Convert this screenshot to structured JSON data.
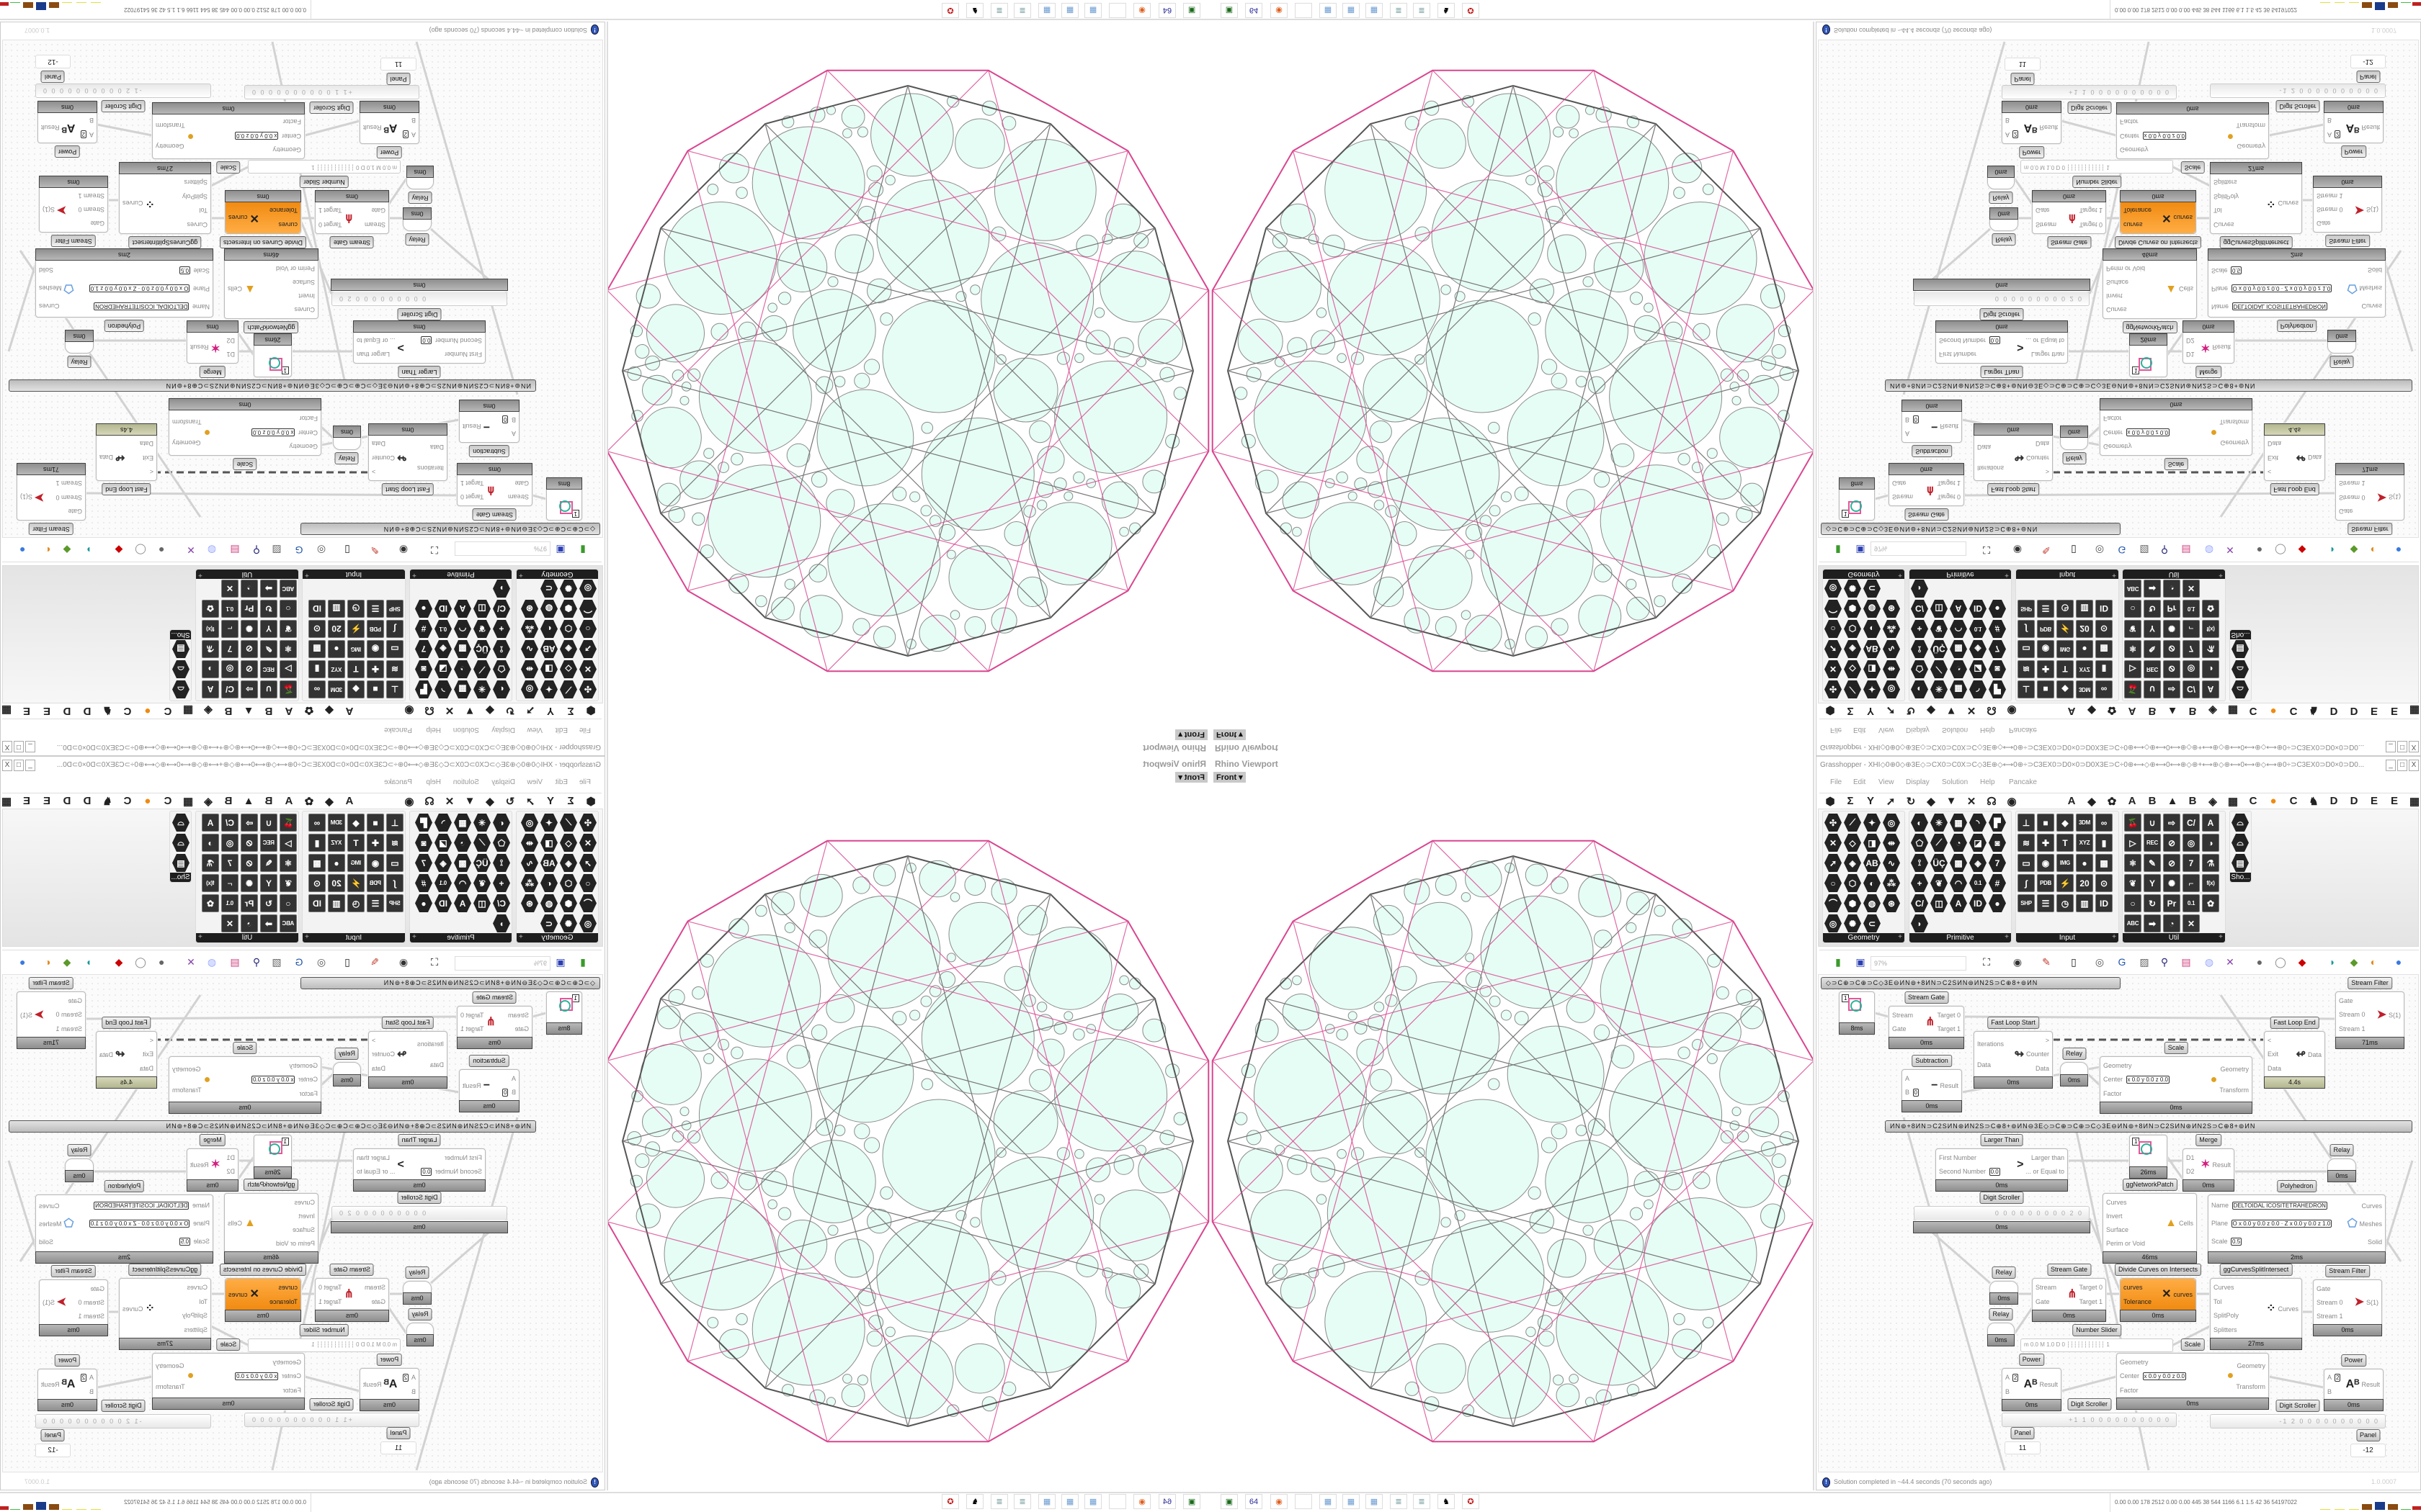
{
  "window": {
    "title": "Grasshopper - XHI◇0⊕0◇⊕3E◇⊃CX0⊃C0X⊃C◇3E⊕◇⟷0⊕÷⊃C3EX0⊃D0×0⊃D0X3E⊃C÷0⊕⟷◇⊕⟷0⟷⊕◇⊕+⟷⊕◇⊕⟷0⟷⊕◇⟷⊕0÷⊃C3EX0⊃D0×0⊃D0...",
    "controls": [
      "_",
      "□",
      "X"
    ]
  },
  "menu": [
    "File",
    "Edit",
    "View",
    "Display",
    "Solution",
    "Help",
    "Pancake"
  ],
  "tabs": {
    "left": [
      "⬢",
      "Σ",
      "Y",
      "➚",
      "↻",
      "◆",
      "▼",
      "✕",
      "☊",
      "◉"
    ],
    "right": [
      "A",
      "◆",
      "✿",
      "A",
      "B",
      "▲",
      "B",
      "◈",
      "▦",
      "C",
      "●",
      "C",
      "♞",
      "D",
      "D",
      "E",
      "E",
      "▦"
    ]
  },
  "palette": [
    {
      "label": "Geometry",
      "glyphs": [
        "✣",
        "⟋",
        "✦",
        "◎",
        "✕",
        "◇",
        "◨",
        "⇹",
        "➚",
        "◈",
        "AB",
        "∿",
        "○",
        "⬡",
        "◐",
        "⁂",
        "⌒",
        "⬢",
        "◍",
        "⊛",
        "◎",
        "✺",
        "⊂"
      ]
    },
    {
      "label": "Primitive",
      "glyphs": [
        "◐",
        "✳",
        "▦",
        "◝",
        "▛",
        "⬠",
        "⟋",
        "◔",
        "◪",
        "◙",
        "⟟",
        "ÜÇ",
        "▩",
        "◈",
        "7",
        "+",
        "❦",
        "◠",
        "0.1",
        "#",
        "C/",
        "◫",
        "A",
        "ID",
        "●",
        "◗"
      ]
    },
    {
      "label": "Input",
      "glyphs": [
        "⊥",
        "■",
        "◆",
        "3DM",
        "∞",
        "≋",
        "✚",
        "T",
        "XYZ",
        "▮",
        "▭",
        "◉",
        "IMG",
        "●",
        "▩",
        "∫",
        "PDB",
        "⚡",
        "20",
        "⊙",
        "SHP",
        "☰",
        "◷",
        "▥",
        "ID"
      ]
    },
    {
      "label": "Util",
      "glyphs": [
        "🍒",
        "∪",
        "⇨",
        "C/",
        "A",
        "▷",
        "REC",
        "⊘",
        "◎",
        "◑",
        "⚛",
        "✎",
        "⊘",
        "7",
        "⚗",
        "❦",
        "Y",
        "✺",
        "⌐",
        "f(x)",
        "○",
        "↻",
        "Pr",
        "0.1",
        "✿",
        "ABC",
        "➡",
        "◔",
        "✕"
      ]
    },
    {
      "label": "Sho...",
      "glyphs": [
        "⌓",
        "⌓",
        "▤"
      ]
    }
  ],
  "toolbar": {
    "zoom": "97%",
    "icons": [
      "new-file",
      "save",
      "zoom-extents",
      "preview",
      "sketch",
      "bake",
      "cluster",
      "gha",
      "widget",
      "search",
      "package",
      "bulb",
      "crossref",
      "sphere-gray",
      "capsule",
      "red-gem",
      "teal",
      "green",
      "orange-sphere",
      "blue-sphere"
    ]
  },
  "canvas": {
    "groups": [
      "◇⊃C⊕⊃C⊕⊃C◇3E⊖ИN⊚+8ИN⊃C2SИN⊛ИN2S⊃C⊕8+⊚ИN",
      "ИN⊚+8ИN⊃C2SИN⊛ИN2S⊃C⊕8+⊚ИN⊖3E◇⊃C⊕⊃C⊕⊃C◇3E⊖ИN⊚+8ИN⊃C2SИN⊛ИN2S⊃C⊕8+⊚ИN"
    ],
    "nodes": [
      {
        "type": "param",
        "value": "1",
        "time": "8ms"
      },
      {
        "type": "comp",
        "label": "Stream Gate",
        "icon": "⋔",
        "inputs": [
          {
            "n": "Stream"
          },
          {
            "n": "Gate"
          }
        ],
        "outputs": [
          "Target 0",
          "Target 1"
        ],
        "time": "0ms"
      },
      {
        "type": "comp",
        "label": "Fast Loop Start",
        "icon": "↬",
        "inputs": [
          {
            "n": "Iterations"
          },
          {
            "n": "Data"
          }
        ],
        "outputs": [
          ">",
          "Counter",
          "Data"
        ],
        "time": "0ms"
      },
      {
        "type": "relay",
        "label": "Relay",
        "time": "0ms"
      },
      {
        "type": "comp",
        "label": "Subtraction",
        "icon": "−",
        "inputs": [
          {
            "n": "A"
          },
          {
            "n": "B",
            "v": "0"
          }
        ],
        "outputs": [
          "Result"
        ],
        "time": "0ms"
      },
      {
        "type": "comp",
        "label": "Scale",
        "icon": "●",
        "inputs": [
          {
            "n": "Geometry"
          },
          {
            "n": "Center",
            "v": "x 0.0 y 0.0 z 0.0"
          },
          {
            "n": "Factor"
          }
        ],
        "outputs": [
          "Geometry",
          "Transform"
        ],
        "time": "0ms"
      },
      {
        "type": "comp",
        "label": "Fast Loop End",
        "icon": "↫",
        "inputs": [
          {
            "n": "<"
          },
          {
            "n": "Exit"
          },
          {
            "n": "Data"
          }
        ],
        "outputs": [
          "Data"
        ],
        "time": "4.4s",
        "olive": true
      },
      {
        "type": "comp",
        "label": "Stream Filter",
        "icon": "➤",
        "inputs": [
          {
            "n": "Gate"
          },
          {
            "n": "Stream 0"
          },
          {
            "n": "Stream 1"
          }
        ],
        "outputs": [
          "S(1)"
        ],
        "time": "71ms"
      },
      {
        "type": "comp",
        "label": "Larger Than",
        "icon": ">",
        "inputs": [
          {
            "n": "First Number"
          },
          {
            "n": "Second Number",
            "v": "0.0"
          }
        ],
        "outputs": [
          "Larger than",
          "... or Equal to"
        ],
        "time": "0ms"
      },
      {
        "type": "param",
        "value": "1",
        "time": "26ms"
      },
      {
        "type": "comp",
        "label": "ggNetworkPatch",
        "icon": "▲",
        "inputs": [
          {
            "n": "Curves"
          },
          {
            "n": "Invert"
          },
          {
            "n": "Surface"
          },
          {
            "n": "Perim or Void"
          }
        ],
        "outputs": [
          "Cells"
        ],
        "time": "46ms"
      },
      {
        "type": "comp",
        "label": "Merge",
        "icon": "✶",
        "inputs": [
          {
            "n": "D1"
          },
          {
            "n": "D2"
          }
        ],
        "outputs": [
          "Result"
        ],
        "time": "0ms"
      },
      {
        "type": "relay",
        "label": "Relay",
        "time": "0ms"
      },
      {
        "type": "comp",
        "label": "Polyhedron",
        "icon": "⬠",
        "inputs": [
          {
            "n": "Name",
            "v": "DELTOIDAL ICOSITETRAHEDRON"
          },
          {
            "n": "Plane",
            "v": "O x 0.0 y 0.0 z 0.0 · Z x 0.0 y 0.0 z 1.0"
          },
          {
            "n": "Scale",
            "v": "0.5"
          }
        ],
        "outputs": [
          "Curves",
          "Meshes",
          "Solid"
        ],
        "time": "2ms"
      },
      {
        "type": "scroller",
        "label": "Digit Scroller",
        "value": "0 0 0 0 0 0 0 0 0 2 0",
        "time": "0ms"
      },
      {
        "type": "relay",
        "label": "Relay",
        "time": "0ms"
      },
      {
        "type": "relay",
        "label": "Relay",
        "time": "0ms"
      },
      {
        "type": "comp",
        "label": "Stream Gate",
        "icon": "⋔",
        "inputs": [
          {
            "n": "Stream"
          },
          {
            "n": "Gate"
          }
        ],
        "outputs": [
          "Target 0",
          "Target 1"
        ],
        "time": "0ms"
      },
      {
        "type": "comp",
        "label": "Divide Curves on Intersects",
        "icon": "✕",
        "inputs": [
          {
            "n": "curves"
          },
          {
            "n": "Tolerance"
          }
        ],
        "outputs": [
          "curves"
        ],
        "time": "0ms",
        "orange": true
      },
      {
        "type": "comp",
        "label": "ggCurvesSplitIntersect",
        "icon": "⁘",
        "inputs": [
          {
            "n": "Curves"
          },
          {
            "n": "Tol"
          },
          {
            "n": "SplitPoly"
          },
          {
            "n": "Splitters"
          }
        ],
        "outputs": [
          "Curves"
        ],
        "time": "27ms"
      },
      {
        "type": "comp",
        "label": "Stream Filter",
        "icon": "➤",
        "inputs": [
          {
            "n": "Gate"
          },
          {
            "n": "Stream 0"
          },
          {
            "n": "Stream 1"
          }
        ],
        "outputs": [
          "S(1)"
        ],
        "time": "0ms"
      },
      {
        "type": "slider",
        "label": "Number Slider",
        "value": "m 0.0 M 1.0 D 0 ┆┆┆┆┆┆┆┆┆┆┆ 1"
      },
      {
        "type": "comp",
        "label": "Power",
        "icon": "Aᴮ",
        "inputs": [
          {
            "n": "A",
            "v": "2"
          },
          {
            "n": "B"
          }
        ],
        "outputs": [
          "Result"
        ],
        "time": "0ms"
      },
      {
        "type": "comp",
        "label": "Scale",
        "icon": "●",
        "inputs": [
          {
            "n": "Geometry"
          },
          {
            "n": "Center",
            "v": "x 0.0 y 0.0 z 0.0"
          },
          {
            "n": "Factor"
          }
        ],
        "outputs": [
          "Geometry",
          "Transform"
        ],
        "time": "0ms"
      },
      {
        "type": "comp",
        "label": "Power",
        "icon": "Aᴮ",
        "inputs": [
          {
            "n": "A",
            "v": "2"
          },
          {
            "n": "B"
          }
        ],
        "outputs": [
          "Result"
        ],
        "time": "0ms"
      },
      {
        "type": "scroller",
        "label": "Digit Scroller",
        "value": "+1 1 0 0 0 0 0 0 0 0 0 0"
      },
      {
        "type": "scroller",
        "label": "Digit Scroller",
        "value": "-1 2 0 0 0 0 0 0 0 0 0 0"
      },
      {
        "type": "panel",
        "label": "Panel",
        "value": "11"
      },
      {
        "type": "panel",
        "label": "Panel",
        "value": "-12"
      }
    ]
  },
  "status": {
    "message": "Solution completed in ~44.4 seconds (70 seconds ago)",
    "version": "1.0.0007"
  },
  "viewport": {
    "title": "Rhino Viewport",
    "view": "Front"
  },
  "taskbar": {
    "icons": [
      "app-green",
      "floppy-64",
      "firefox",
      "blank",
      "calculator",
      "calculator",
      "calculator",
      "notepad",
      "notepad",
      "wolf",
      "red-app"
    ],
    "icon_labels": [
      "▣",
      "64",
      "◉",
      "",
      "▦",
      "▦",
      "▦",
      "≣",
      "≣",
      "♞",
      "✪"
    ],
    "stats": "0.00 0.00 178 2512 0.00 0.00 445 38 544 1166 6.1 1.5 42 36 54197022"
  },
  "colors": {
    "accent_orange": "#f08a10",
    "packing_fill": "#e6fdf5",
    "outline_pink": "#d9468f",
    "polyhedron_edge": "#555555"
  }
}
